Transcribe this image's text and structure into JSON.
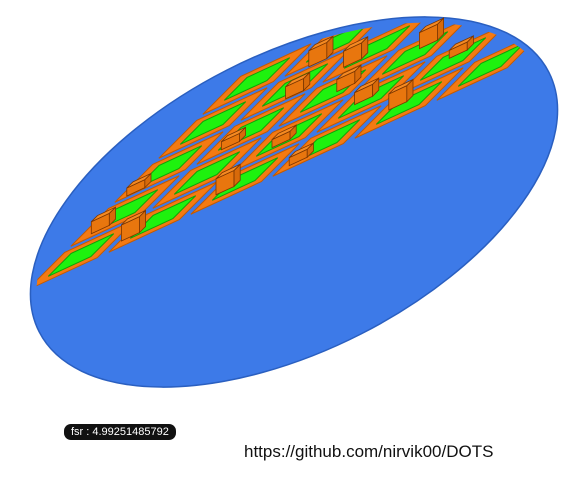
{
  "viewport": {
    "fsr_label": "fsr : 4.99251485792"
  },
  "footer": {
    "repo_url": "https://github.com/nirvik00/DOTS"
  },
  "colors": {
    "site": "#3d7ae8",
    "site_edge": "#2a5fc0",
    "block": "#f47a12",
    "block_edge": "#c45a00",
    "building": "#e8760e",
    "building_top": "#f58a22",
    "building_edge": "#7a3500",
    "courtyard": "#1ef20e",
    "courtyard_edge": "#0fa006",
    "road": "#c9ced6"
  }
}
